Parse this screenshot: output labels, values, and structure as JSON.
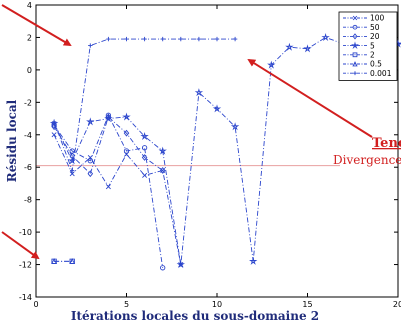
{
  "chart_data": {
    "type": "line",
    "xlabel": "Itérations locales du sous-domaine 2",
    "ylabel": "Résidu local",
    "xlim": [
      0,
      20
    ],
    "ylim": [
      -14,
      4
    ],
    "xticks": [
      "0",
      "5",
      "10",
      "15",
      "20"
    ],
    "yticks": [
      "-14",
      "-12",
      "-10",
      "-8",
      "-6",
      "-4",
      "-2",
      "0",
      "2",
      "4"
    ],
    "grid": false,
    "legend_position": "top-right",
    "reference_line_y": -5.9,
    "annotations": [
      "Tenc",
      "Divergence"
    ],
    "series": [
      {
        "name": "100",
        "marker": "x",
        "x": [
          1,
          2,
          3,
          4,
          5,
          6,
          7,
          8
        ],
        "y": [
          -4.0,
          -6.4,
          -5.4,
          -7.2,
          -5.2,
          -6.5,
          -6.2,
          -12.0
        ]
      },
      {
        "name": "50",
        "marker": "o",
        "x": [
          1,
          2,
          3,
          4,
          5,
          6,
          7
        ],
        "y": [
          -3.4,
          -5.0,
          -5.6,
          -2.8,
          -5.0,
          -4.8,
          -12.2
        ]
      },
      {
        "name": "20",
        "marker": "diamond",
        "x": [
          1,
          2,
          3,
          4,
          5,
          6,
          7
        ],
        "y": [
          -3.5,
          -5.3,
          -6.4,
          -2.9,
          -3.9,
          -5.4,
          -6.2
        ]
      },
      {
        "name": "5",
        "marker": "star",
        "x": [
          1,
          2,
          3,
          4,
          5,
          6,
          7,
          8,
          9,
          10,
          11,
          12,
          13,
          14,
          15,
          16,
          17,
          18,
          19,
          20,
          21
        ],
        "y": [
          -3.3,
          -5.6,
          -3.2,
          -3.0,
          -2.9,
          -4.1,
          -5.0,
          -12.0,
          -1.4,
          -2.4,
          -3.5,
          -11.8,
          0.3,
          1.4,
          1.3,
          2.0,
          1.6,
          1.6,
          1.6,
          1.6,
          1.6
        ]
      },
      {
        "name": "2",
        "marker": "square",
        "x": [
          1,
          2
        ],
        "y": [
          -11.8,
          -11.8
        ]
      },
      {
        "name": "0.5",
        "marker": "triangle",
        "x": [
          1,
          2
        ],
        "y": [
          -11.8,
          -11.8
        ]
      },
      {
        "name": "0.001",
        "marker": "plus",
        "x": [
          1,
          2,
          3,
          4,
          5,
          6,
          7,
          8,
          9,
          10,
          11
        ],
        "y": [
          -3.2,
          -6.2,
          1.5,
          1.9,
          1.9,
          1.9,
          1.9,
          1.9,
          1.9,
          1.9,
          1.9
        ]
      }
    ]
  },
  "colors": {
    "series": "#2b45cc",
    "axis_text": "#1f2b7a",
    "annotation": "#d21f1f",
    "reference_line": "#e8a0a0"
  }
}
